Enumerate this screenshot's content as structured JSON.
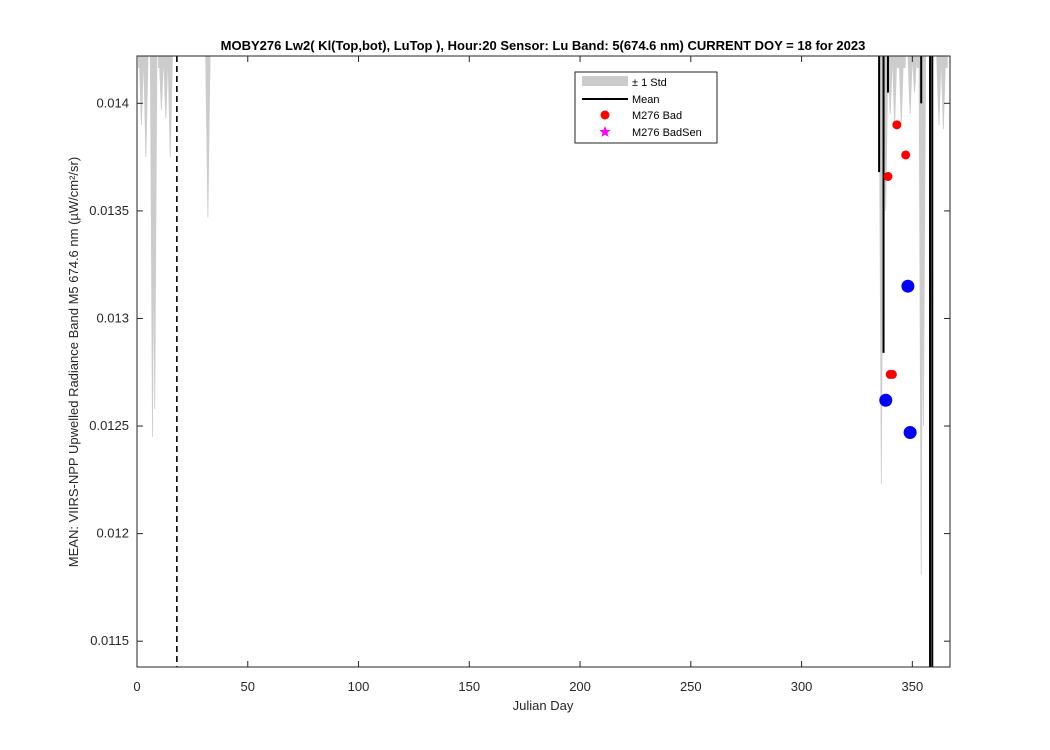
{
  "chart_data": {
    "type": "line",
    "title": "MOBY276   Lw2( Kl(Top,bot), LuTop ),   Hour:20 Sensor: Lu Band: 5(674.6 nm)   CURRENT DOY = 18 for 2023",
    "xlabel": "Julian Day",
    "ylabel": "MEAN: VIIRS-NPP Upwelled Radiance Band M5 674.6 nm (µW/cm²/sr)",
    "xlim": [
      0,
      367
    ],
    "ylim": [
      0.01138,
      0.01422
    ],
    "xticks": [
      0,
      50,
      100,
      150,
      200,
      250,
      300,
      350
    ],
    "yticks": [
      0.0115,
      0.012,
      0.0125,
      0.013,
      0.0135,
      0.014
    ],
    "ytick_labels": [
      "0.0115",
      "0.012",
      "0.0125",
      "0.013",
      "0.0135",
      "0.014"
    ],
    "current_doy": 18,
    "grid": false,
    "legend_position": "top-center",
    "legend": [
      {
        "label": "± 1 Std",
        "kind": "patch",
        "color": "#cccccc"
      },
      {
        "label": "Mean",
        "kind": "line",
        "color": "#000000"
      },
      {
        "label": "M276 Bad",
        "kind": "dot",
        "color": "#ff0000"
      },
      {
        "label": "M276 BadSen",
        "kind": "star",
        "color": "#ff00ff"
      }
    ],
    "series": [
      {
        "name": "± 1 Std",
        "type": "band-spikes",
        "color": "#cccccc",
        "spikes": [
          {
            "x": 2,
            "y": 0.0139
          },
          {
            "x": 4,
            "y": 0.01375
          },
          {
            "x": 7,
            "y": 0.01245
          },
          {
            "x": 8,
            "y": 0.01258
          },
          {
            "x": 11,
            "y": 0.01397
          },
          {
            "x": 13,
            "y": 0.01393
          },
          {
            "x": 15,
            "y": 0.01375
          },
          {
            "x": 32,
            "y": 0.01347
          },
          {
            "x": 336,
            "y": 0.01223
          },
          {
            "x": 338,
            "y": 0.0135
          },
          {
            "x": 340,
            "y": 0.01395
          },
          {
            "x": 342,
            "y": 0.0139
          },
          {
            "x": 345,
            "y": 0.0139
          },
          {
            "x": 349,
            "y": 0.01395
          },
          {
            "x": 351,
            "y": 0.01405
          },
          {
            "x": 354,
            "y": 0.01181
          },
          {
            "x": 355,
            "y": 0.0125
          },
          {
            "x": 362,
            "y": 0.0139
          },
          {
            "x": 364,
            "y": 0.01388
          }
        ]
      },
      {
        "name": "Mean",
        "type": "line-spikes",
        "color": "#000000",
        "spikes": [
          {
            "x": 335,
            "y": 0.01368
          },
          {
            "x": 337,
            "y": 0.01284
          },
          {
            "x": 339,
            "y": 0.01405
          },
          {
            "x": 354,
            "y": 0.014
          },
          {
            "x": 358,
            "y": 0.01138
          },
          {
            "x": 359,
            "y": 0.01138
          }
        ]
      },
      {
        "name": "M276 Bad",
        "type": "scatter",
        "color": "#ff0000",
        "points": [
          [
            339,
            0.01366
          ],
          [
            340,
            0.01274
          ],
          [
            341,
            0.01274
          ],
          [
            343,
            0.0139
          ],
          [
            347,
            0.01376
          ]
        ]
      },
      {
        "name": "",
        "type": "scatter",
        "color": "#0000ff",
        "points": [
          [
            338,
            0.01262
          ],
          [
            348,
            0.01315
          ],
          [
            349,
            0.01247
          ]
        ]
      }
    ]
  }
}
